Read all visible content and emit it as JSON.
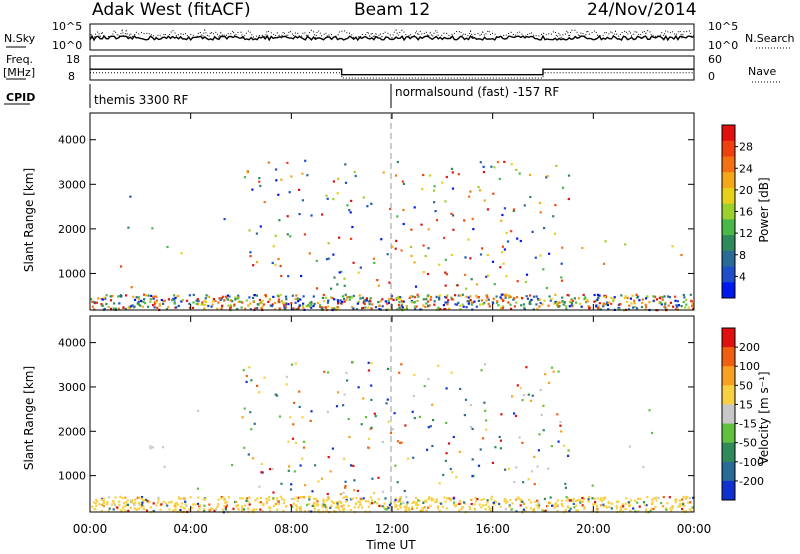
{
  "header": {
    "left": "Adak West (fitACF)",
    "center": "Beam 12",
    "right": "24/Nov/2014"
  },
  "strips": {
    "nsky_label": "N.Sky",
    "nsky_ticks": [
      "10^5",
      "10^0"
    ],
    "nsky_right_ticks": [
      "10^5",
      "10^0"
    ],
    "nsearch_label": "N.Search",
    "freq_label_1": "Freq.",
    "freq_label_2": "[MHz]",
    "freq_ticks": [
      "18",
      "8"
    ],
    "nave_ticks": [
      "60",
      "0"
    ],
    "nave_label": "Nave",
    "cpid_label": "CPID",
    "cpid_segments": [
      {
        "label": "themis 3300 RF",
        "start_hour": 0
      },
      {
        "label": "normalsound (fast) -157 RF",
        "start_hour": 12
      }
    ],
    "freq_profile": [
      {
        "from": 0,
        "to": 10,
        "value": 12.5
      },
      {
        "from": 10,
        "to": 18,
        "value": 10.2
      },
      {
        "from": 18,
        "to": 24,
        "value": 12.5
      }
    ],
    "nave_profile": [
      {
        "from": 0,
        "to": 10,
        "value": 18
      },
      {
        "from": 10,
        "to": 18,
        "value": 5
      },
      {
        "from": 18,
        "to": 24,
        "value": 18
      }
    ]
  },
  "chart_data": [
    {
      "type": "heatmap",
      "quantity": "Power",
      "ylabel": "Slant Range [km]",
      "ylim": [
        180,
        4600
      ],
      "yticks": [
        1000,
        2000,
        3000,
        4000
      ],
      "xlim": [
        0,
        24
      ],
      "colorbar_label": "Power [dB]",
      "colorbar_ticks": [
        "28",
        "24",
        "20",
        "16",
        "12",
        "8",
        "4"
      ],
      "colorbar_colors": [
        "#0018f0",
        "#1e4ec8",
        "#2a6a96",
        "#2f8a5a",
        "#48b848",
        "#9cd02c",
        "#e8d018",
        "#f4a818",
        "#f47010",
        "#f04010",
        "#e01010"
      ],
      "regions": [
        {
          "t0": 0,
          "t1": 4.5,
          "r0": 700,
          "r1": 2900,
          "cls": "power-morning"
        },
        {
          "t0": 4.5,
          "t1": 5.6,
          "r0": 800,
          "r1": 2300,
          "cls": "power-late"
        },
        {
          "t0": 5.6,
          "t1": 8,
          "r0": 900,
          "r1": 1300,
          "cls": "power-weak"
        },
        {
          "t0": 19.5,
          "t1": 24,
          "r0": 800,
          "r1": 2600,
          "cls": "power-evening"
        }
      ]
    },
    {
      "type": "heatmap",
      "quantity": "Velocity",
      "ylabel": "Slant Range [km]",
      "ylim": [
        180,
        4600
      ],
      "yticks": [
        1000,
        2000,
        3000,
        4000
      ],
      "xlim": [
        0,
        24
      ],
      "xticks": [
        "00:00",
        "04:00",
        "08:00",
        "12:00",
        "16:00",
        "20:00",
        "00:00"
      ],
      "xlabel": "Time UT",
      "colorbar_label": "Velocity [m s⁻¹]",
      "colorbar_ticks": [
        "200",
        "100",
        "50",
        "15",
        "-15",
        "-50",
        "-100",
        "-200"
      ],
      "colorbar_colors": [
        "#1030d0",
        "#2a6a96",
        "#2f8a5a",
        "#60c040",
        "#c8c8c8",
        "#f8d040",
        "#f8a020",
        "#f06010",
        "#e01010"
      ],
      "regions": [
        {
          "t0": 0,
          "t1": 5.2,
          "r0": 700,
          "r1": 2600,
          "cls": "vel-grey"
        },
        {
          "t0": 5.2,
          "t1": 8,
          "r0": 800,
          "r1": 1300,
          "cls": "vel-green"
        },
        {
          "t0": 19.8,
          "t1": 24,
          "r0": 800,
          "r1": 2600,
          "cls": "vel-grey"
        }
      ]
    }
  ]
}
